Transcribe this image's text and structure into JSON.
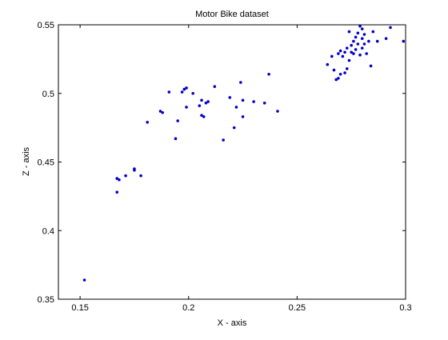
{
  "chart_data": {
    "type": "scatter",
    "title": "Motor Bike dataset",
    "xlabel": "X - axis",
    "ylabel": "Z - axis",
    "xlim": [
      0.14,
      0.3
    ],
    "ylim": [
      0.35,
      0.55
    ],
    "xticks": [
      0.15,
      0.2,
      0.25,
      0.3
    ],
    "yticks": [
      0.35,
      0.4,
      0.45,
      0.5,
      0.55
    ],
    "xtick_labels": [
      "0.15",
      "0.2",
      "0.25",
      "0.3"
    ],
    "ytick_labels": [
      "0.35",
      "0.4",
      "0.45",
      "0.5",
      "0.55"
    ],
    "grid": false,
    "legend": "none",
    "marker": "dot",
    "marker_color": "#0000cc",
    "series": [
      {
        "points": [
          [
            0.152,
            0.364
          ],
          [
            0.167,
            0.438
          ],
          [
            0.168,
            0.437
          ],
          [
            0.167,
            0.428
          ],
          [
            0.171,
            0.44
          ],
          [
            0.175,
            0.445
          ],
          [
            0.175,
            0.444
          ],
          [
            0.178,
            0.44
          ],
          [
            0.181,
            0.479
          ],
          [
            0.187,
            0.487
          ],
          [
            0.188,
            0.486
          ],
          [
            0.191,
            0.501
          ],
          [
            0.194,
            0.467
          ],
          [
            0.195,
            0.48
          ],
          [
            0.197,
            0.501
          ],
          [
            0.199,
            0.504
          ],
          [
            0.198,
            0.503
          ],
          [
            0.199,
            0.49
          ],
          [
            0.202,
            0.5
          ],
          [
            0.205,
            0.491
          ],
          [
            0.206,
            0.495
          ],
          [
            0.206,
            0.484
          ],
          [
            0.207,
            0.483
          ],
          [
            0.208,
            0.493
          ],
          [
            0.209,
            0.494
          ],
          [
            0.212,
            0.505
          ],
          [
            0.216,
            0.466
          ],
          [
            0.219,
            0.497
          ],
          [
            0.221,
            0.475
          ],
          [
            0.222,
            0.49
          ],
          [
            0.224,
            0.508
          ],
          [
            0.225,
            0.495
          ],
          [
            0.225,
            0.483
          ],
          [
            0.23,
            0.494
          ],
          [
            0.235,
            0.493
          ],
          [
            0.237,
            0.514
          ],
          [
            0.241,
            0.487
          ],
          [
            0.264,
            0.521
          ],
          [
            0.266,
            0.527
          ],
          [
            0.267,
            0.517
          ],
          [
            0.268,
            0.51
          ],
          [
            0.269,
            0.511
          ],
          [
            0.269,
            0.529
          ],
          [
            0.27,
            0.531
          ],
          [
            0.27,
            0.514
          ],
          [
            0.271,
            0.527
          ],
          [
            0.272,
            0.53
          ],
          [
            0.272,
            0.515
          ],
          [
            0.273,
            0.533
          ],
          [
            0.273,
            0.518
          ],
          [
            0.274,
            0.545
          ],
          [
            0.274,
            0.524
          ],
          [
            0.275,
            0.535
          ],
          [
            0.275,
            0.53
          ],
          [
            0.276,
            0.538
          ],
          [
            0.276,
            0.529
          ],
          [
            0.277,
            0.541
          ],
          [
            0.277,
            0.532
          ],
          [
            0.278,
            0.536
          ],
          [
            0.278,
            0.544
          ],
          [
            0.279,
            0.528
          ],
          [
            0.279,
            0.549
          ],
          [
            0.28,
            0.547
          ],
          [
            0.28,
            0.54
          ],
          [
            0.28,
            0.533
          ],
          [
            0.281,
            0.543
          ],
          [
            0.281,
            0.536
          ],
          [
            0.282,
            0.529
          ],
          [
            0.283,
            0.538
          ],
          [
            0.284,
            0.52
          ],
          [
            0.285,
            0.545
          ],
          [
            0.287,
            0.538
          ],
          [
            0.291,
            0.54
          ],
          [
            0.293,
            0.548
          ],
          [
            0.299,
            0.538
          ]
        ]
      }
    ]
  }
}
